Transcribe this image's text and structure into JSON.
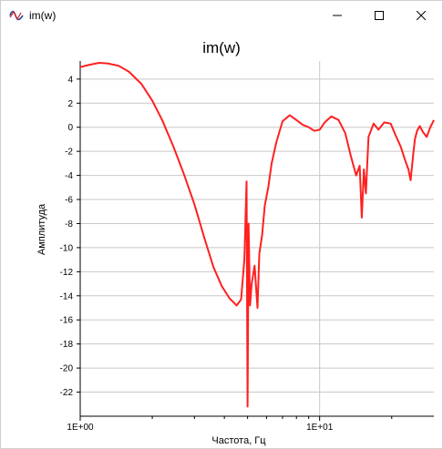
{
  "window": {
    "title": "im(w)",
    "icon": "spectrum-app-icon",
    "controls": [
      "minimize",
      "maximize",
      "close"
    ]
  },
  "chart_data": {
    "type": "line",
    "title": "im(w)",
    "xlabel": "Частота, Гц",
    "ylabel": "Амплитуда",
    "x_scale": "log",
    "xlim": [
      1,
      30
    ],
    "ylim": [
      -24,
      5.5
    ],
    "y_ticks": [
      4,
      2,
      0,
      -2,
      -4,
      -6,
      -8,
      -10,
      -12,
      -14,
      -16,
      -18,
      -20,
      -22
    ],
    "y_tick_labels": [
      "4",
      "2",
      "0",
      "-2",
      "-4",
      "-6",
      "-8",
      "-10",
      "-12",
      "-14",
      "-16",
      "-18",
      "-20",
      "-22"
    ],
    "x_ticks": [
      1,
      10
    ],
    "x_tick_labels": [
      "1E+00",
      "1E+01"
    ],
    "grid": true,
    "line_color": "#ff2020",
    "series": [
      {
        "x": [
          1.0,
          1.1,
          1.2,
          1.3,
          1.45,
          1.6,
          1.8,
          2.0,
          2.2,
          2.45,
          2.7,
          3.0,
          3.3,
          3.6,
          3.9,
          4.2,
          4.5,
          4.7,
          4.85,
          4.95,
          5.0,
          5.05,
          5.12,
          5.2,
          5.35,
          5.5,
          5.6,
          5.75,
          5.9,
          6.1,
          6.3,
          6.6,
          7.0,
          7.5,
          8.0,
          8.5,
          9.0,
          9.5,
          10.0,
          10.5,
          11.2,
          12.0,
          12.8,
          13.5,
          14.2,
          14.7,
          15.0,
          15.3,
          15.6,
          16.0,
          16.8,
          17.6,
          18.6,
          19.8,
          20.8,
          21.8,
          22.8,
          23.5,
          24.0,
          24.6,
          25.0,
          25.5,
          26.2,
          27.0,
          28.0,
          29.0,
          30.0
        ],
        "y": [
          5.0,
          5.2,
          5.35,
          5.3,
          5.1,
          4.6,
          3.6,
          2.2,
          0.6,
          -1.6,
          -3.8,
          -6.4,
          -9.2,
          -11.6,
          -13.2,
          -14.2,
          -14.8,
          -14.3,
          -11.0,
          -4.5,
          -23.2,
          -8.0,
          -14.8,
          -13.0,
          -11.5,
          -15.0,
          -10.5,
          -9.0,
          -6.5,
          -5.0,
          -3.0,
          -1.2,
          0.5,
          1.0,
          0.6,
          0.2,
          0.0,
          -0.3,
          -0.2,
          0.4,
          0.9,
          0.6,
          -0.5,
          -2.4,
          -4.0,
          -3.2,
          -7.5,
          -3.5,
          -5.5,
          -0.8,
          0.3,
          -0.2,
          0.4,
          0.3,
          -0.7,
          -1.6,
          -2.8,
          -3.5,
          -4.4,
          -2.2,
          -1.0,
          -0.3,
          0.1,
          -0.4,
          -0.8,
          0.0,
          0.6
        ]
      }
    ]
  }
}
